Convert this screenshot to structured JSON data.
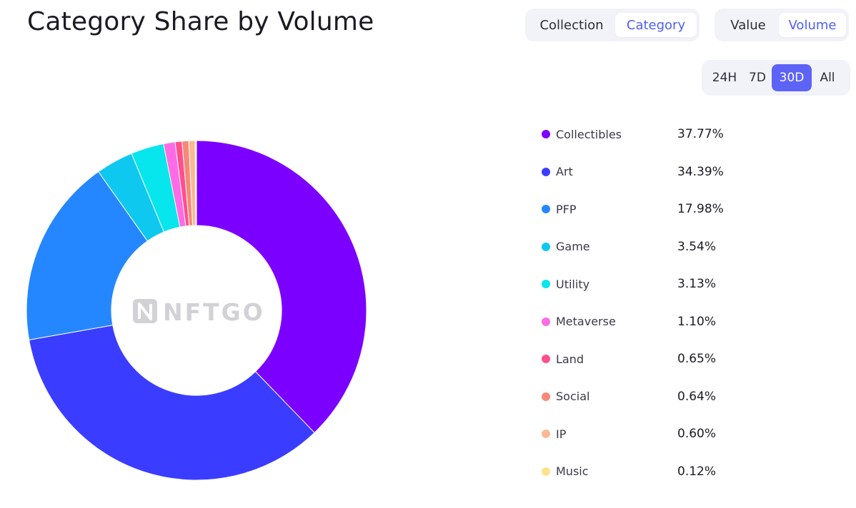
{
  "header": {
    "title": "Category Share by Volume"
  },
  "toggles": {
    "view": {
      "options": [
        "Collection",
        "Category"
      ],
      "selected": "Category"
    },
    "metric": {
      "options": [
        "Value",
        "Volume"
      ],
      "selected": "Volume"
    },
    "range": {
      "options": [
        "24H",
        "7D",
        "30D",
        "All"
      ],
      "selected": "30D"
    }
  },
  "watermark": "NFTGO",
  "chart_data": {
    "type": "pie",
    "title": "Category Share by Volume",
    "legend_position": "right",
    "inner_radius_ratio": 0.5,
    "categories": [
      "Collectibles",
      "Art",
      "PFP",
      "Game",
      "Utility",
      "Metaverse",
      "Land",
      "Social",
      "IP",
      "Music"
    ],
    "values": [
      37.77,
      34.39,
      17.98,
      3.54,
      3.13,
      1.1,
      0.65,
      0.64,
      0.6,
      0.12
    ],
    "labels": [
      "37.77%",
      "34.39%",
      "17.98%",
      "3.54%",
      "3.13%",
      "1.10%",
      "0.65%",
      "0.64%",
      "0.60%",
      "0.12%"
    ],
    "colors": [
      "#7b00ff",
      "#3a3dff",
      "#2487ff",
      "#0ec8f0",
      "#06e6ec",
      "#ff6be6",
      "#ff4f8c",
      "#f78979",
      "#fbb993",
      "#fde38c"
    ]
  }
}
